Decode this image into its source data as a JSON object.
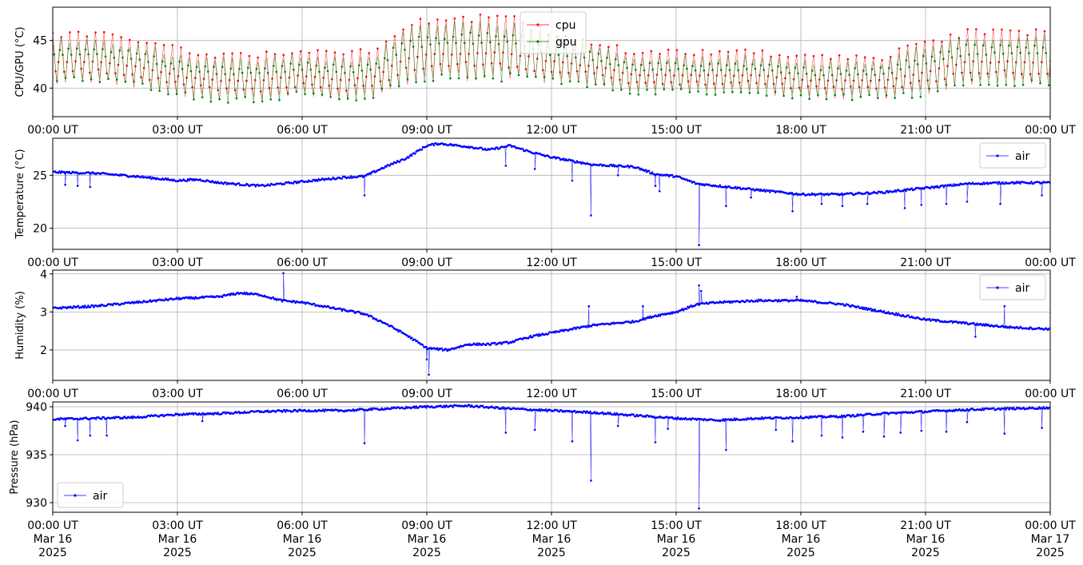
{
  "colors": {
    "cpu": "#ff0000",
    "gpu": "#008000",
    "air": "#0000ff",
    "grid": "#b0b0b0",
    "axis": "#000000"
  },
  "x_ticks": {
    "time_labels": [
      "00:00 UT",
      "03:00 UT",
      "06:00 UT",
      "09:00 UT",
      "12:00 UT",
      "15:00 UT",
      "18:00 UT",
      "21:00 UT",
      "00:00 UT"
    ],
    "date_labels": [
      "Mar 16",
      "Mar 16",
      "Mar 16",
      "Mar 16",
      "Mar 16",
      "Mar 16",
      "Mar 16",
      "Mar 16",
      "Mar 17"
    ],
    "year_labels": [
      "2025",
      "2025",
      "2025",
      "2025",
      "2025",
      "2025",
      "2025",
      "2025",
      "2025"
    ]
  },
  "chart_data": [
    {
      "type": "line",
      "ylabel": "CPU/GPU (°C)",
      "ylim": [
        37,
        48.5
      ],
      "yticks": [
        40,
        45
      ],
      "xlim": [
        "2025-03-16 00:00",
        "2025-03-17 00:00"
      ],
      "x_unit": "hours",
      "grid": true,
      "legend": "top-center",
      "series": [
        {
          "name": "cpu",
          "color": "#ff0000",
          "points": [
            [
              0,
              43
            ],
            [
              1,
              43
            ],
            [
              2,
              42.5
            ],
            [
              3,
              41.5
            ],
            [
              4,
              41
            ],
            [
              5,
              41
            ],
            [
              6,
              41.5
            ],
            [
              7,
              41
            ],
            [
              7.8,
              41.5
            ],
            [
              8.5,
              43.5
            ],
            [
              9,
              43.8
            ],
            [
              10,
              44
            ],
            [
              11,
              44
            ],
            [
              12,
              43
            ],
            [
              13,
              42.5
            ],
            [
              14,
              41.5
            ],
            [
              15,
              41.5
            ],
            [
              16,
              41.5
            ],
            [
              17,
              41.5
            ],
            [
              18,
              41
            ],
            [
              19,
              41
            ],
            [
              20,
              41
            ],
            [
              21,
              42
            ],
            [
              22,
              43
            ],
            [
              23,
              43
            ],
            [
              24,
              43
            ]
          ],
          "spread": [
            [
              0,
              2.8
            ],
            [
              7.8,
              2.6
            ],
            [
              8.5,
              3.5
            ],
            [
              11,
              3.5
            ],
            [
              12,
              2.8
            ],
            [
              14,
              2.3
            ],
            [
              20,
              2.4
            ],
            [
              21,
              3
            ],
            [
              24,
              3
            ]
          ]
        },
        {
          "name": "gpu",
          "color": "#008000",
          "points": [
            [
              0,
              43
            ],
            [
              1,
              43
            ],
            [
              2,
              42.5
            ],
            [
              3,
              41.5
            ],
            [
              4,
              41
            ],
            [
              5,
              41
            ],
            [
              6,
              41.5
            ],
            [
              7,
              41
            ],
            [
              7.8,
              41.5
            ],
            [
              8.5,
              43.5
            ],
            [
              9,
              43.8
            ],
            [
              10,
              44
            ],
            [
              11,
              44
            ],
            [
              12,
              43
            ],
            [
              13,
              42.5
            ],
            [
              14,
              41.5
            ],
            [
              15,
              41.5
            ],
            [
              16,
              41.5
            ],
            [
              17,
              41.5
            ],
            [
              18,
              41
            ],
            [
              19,
              41
            ],
            [
              20,
              41
            ],
            [
              21,
              42
            ],
            [
              22,
              43
            ],
            [
              23,
              43
            ],
            [
              24,
              43
            ]
          ],
          "spread": [
            [
              0,
              2.5
            ],
            [
              7.8,
              2.4
            ],
            [
              8.5,
              3.3
            ],
            [
              11,
              3.3
            ],
            [
              12,
              2.6
            ],
            [
              14,
              2.1
            ],
            [
              20,
              2.2
            ],
            [
              21,
              2.8
            ],
            [
              24,
              2.8
            ]
          ]
        }
      ]
    },
    {
      "type": "line",
      "ylabel": "Temperature (°C)",
      "ylim": [
        18,
        28.5
      ],
      "yticks": [
        20,
        25
      ],
      "xlim": [
        "2025-03-16 00:00",
        "2025-03-17 00:00"
      ],
      "x_unit": "hours",
      "grid": true,
      "legend": "top-right",
      "series": [
        {
          "name": "air",
          "color": "#0000ff",
          "points": [
            [
              0,
              25.3
            ],
            [
              1,
              25.2
            ],
            [
              2,
              24.9
            ],
            [
              3,
              24.5
            ],
            [
              3.5,
              24.6
            ],
            [
              4,
              24.3
            ],
            [
              5,
              24.0
            ],
            [
              6,
              24.4
            ],
            [
              7,
              24.8
            ],
            [
              7.5,
              24.9
            ],
            [
              8,
              25.8
            ],
            [
              8.5,
              26.6
            ],
            [
              9,
              27.8
            ],
            [
              9.3,
              28.0
            ],
            [
              10,
              27.7
            ],
            [
              10.5,
              27.4
            ],
            [
              11,
              27.8
            ],
            [
              11.5,
              27.2
            ],
            [
              12,
              26.7
            ],
            [
              13,
              26.0
            ],
            [
              14,
              25.8
            ],
            [
              14.5,
              25.1
            ],
            [
              15,
              24.9
            ],
            [
              15.5,
              24.2
            ],
            [
              16,
              24.0
            ],
            [
              17,
              23.6
            ],
            [
              18,
              23.2
            ],
            [
              19,
              23.2
            ],
            [
              20,
              23.4
            ],
            [
              21,
              23.8
            ],
            [
              22,
              24.2
            ],
            [
              23,
              24.3
            ],
            [
              24,
              24.3
            ]
          ],
          "spikes": [
            [
              0.3,
              24.1
            ],
            [
              0.6,
              24.0
            ],
            [
              0.9,
              23.9
            ],
            [
              7.5,
              23.1
            ],
            [
              10.9,
              25.9
            ],
            [
              11.6,
              25.6
            ],
            [
              12.5,
              24.5
            ],
            [
              12.95,
              21.2
            ],
            [
              13.6,
              25.0
            ],
            [
              14.5,
              24.0
            ],
            [
              14.6,
              23.5
            ],
            [
              15.55,
              18.4
            ],
            [
              16.2,
              22.1
            ],
            [
              16.8,
              22.9
            ],
            [
              17.8,
              21.6
            ],
            [
              18.5,
              22.3
            ],
            [
              19.0,
              22.1
            ],
            [
              19.6,
              22.3
            ],
            [
              20.5,
              21.9
            ],
            [
              20.9,
              22.2
            ],
            [
              21.5,
              22.3
            ],
            [
              22.0,
              22.5
            ],
            [
              22.8,
              22.3
            ],
            [
              23.8,
              23.1
            ]
          ]
        }
      ]
    },
    {
      "type": "line",
      "ylabel": "Humidity (%)",
      "ylim": [
        1.2,
        4.1
      ],
      "yticks": [
        2,
        3,
        4
      ],
      "xlim": [
        "2025-03-16 00:00",
        "2025-03-17 00:00"
      ],
      "x_unit": "hours",
      "grid": true,
      "legend": "top-right",
      "series": [
        {
          "name": "air",
          "color": "#0000ff",
          "points": [
            [
              0,
              3.1
            ],
            [
              1,
              3.15
            ],
            [
              2,
              3.25
            ],
            [
              3,
              3.35
            ],
            [
              4,
              3.4
            ],
            [
              4.5,
              3.5
            ],
            [
              5,
              3.45
            ],
            [
              5.5,
              3.3
            ],
            [
              6,
              3.25
            ],
            [
              7,
              3.05
            ],
            [
              7.5,
              2.95
            ],
            [
              8,
              2.7
            ],
            [
              8.5,
              2.4
            ],
            [
              9,
              2.05
            ],
            [
              9.5,
              2.0
            ],
            [
              10,
              2.15
            ],
            [
              10.5,
              2.15
            ],
            [
              11,
              2.2
            ],
            [
              11.5,
              2.35
            ],
            [
              12,
              2.45
            ],
            [
              13,
              2.65
            ],
            [
              14,
              2.75
            ],
            [
              14.5,
              2.9
            ],
            [
              15,
              3.0
            ],
            [
              15.5,
              3.2
            ],
            [
              16,
              3.25
            ],
            [
              17,
              3.3
            ],
            [
              18,
              3.3
            ],
            [
              19,
              3.2
            ],
            [
              20,
              3.0
            ],
            [
              21,
              2.8
            ],
            [
              22,
              2.7
            ],
            [
              23,
              2.6
            ],
            [
              24,
              2.55
            ]
          ],
          "spikes": [
            [
              5.55,
              4.02
            ],
            [
              9.05,
              1.35
            ],
            [
              9.0,
              1.75
            ],
            [
              12.9,
              3.15
            ],
            [
              14.2,
              3.15
            ],
            [
              15.55,
              3.7
            ],
            [
              15.6,
              3.55
            ],
            [
              17.9,
              3.4
            ],
            [
              22.2,
              2.35
            ],
            [
              22.9,
              3.15
            ]
          ]
        }
      ]
    },
    {
      "type": "line",
      "ylabel": "Pressure (hPa)",
      "ylim": [
        929,
        940.5
      ],
      "yticks": [
        930,
        935,
        940
      ],
      "xlim": [
        "2025-03-16 00:00",
        "2025-03-17 00:00"
      ],
      "x_unit": "hours",
      "grid": true,
      "legend": "bottom-left",
      "series": [
        {
          "name": "air",
          "color": "#0000ff",
          "points": [
            [
              0,
              938.7
            ],
            [
              1,
              938.8
            ],
            [
              2,
              938.9
            ],
            [
              3,
              939.2
            ],
            [
              4,
              939.3
            ],
            [
              5,
              939.5
            ],
            [
              6,
              939.6
            ],
            [
              7,
              939.6
            ],
            [
              8,
              939.8
            ],
            [
              9,
              940.0
            ],
            [
              10,
              940.1
            ],
            [
              11,
              939.8
            ],
            [
              12,
              939.6
            ],
            [
              13,
              939.4
            ],
            [
              14,
              939.1
            ],
            [
              15,
              938.8
            ],
            [
              16,
              938.6
            ],
            [
              17,
              938.8
            ],
            [
              18,
              938.9
            ],
            [
              19,
              939.0
            ],
            [
              20,
              939.3
            ],
            [
              21,
              939.5
            ],
            [
              22,
              939.7
            ],
            [
              23,
              939.8
            ],
            [
              24,
              939.9
            ]
          ],
          "spikes": [
            [
              0.3,
              938.0
            ],
            [
              0.6,
              936.5
            ],
            [
              0.9,
              937.0
            ],
            [
              1.3,
              937.0
            ],
            [
              3.6,
              938.5
            ],
            [
              7.5,
              936.2
            ],
            [
              10.9,
              937.3
            ],
            [
              11.6,
              937.6
            ],
            [
              12.5,
              936.4
            ],
            [
              12.95,
              932.3
            ],
            [
              13.6,
              938.0
            ],
            [
              14.5,
              936.3
            ],
            [
              14.8,
              937.7
            ],
            [
              15.55,
              929.4
            ],
            [
              16.2,
              935.5
            ],
            [
              17.4,
              937.6
            ],
            [
              17.8,
              936.4
            ],
            [
              18.5,
              937.0
            ],
            [
              19.0,
              936.8
            ],
            [
              19.5,
              937.4
            ],
            [
              20.0,
              936.9
            ],
            [
              20.4,
              937.3
            ],
            [
              20.9,
              937.5
            ],
            [
              21.5,
              937.4
            ],
            [
              22.0,
              938.4
            ],
            [
              22.9,
              937.2
            ],
            [
              23.8,
              937.8
            ]
          ]
        }
      ]
    }
  ]
}
